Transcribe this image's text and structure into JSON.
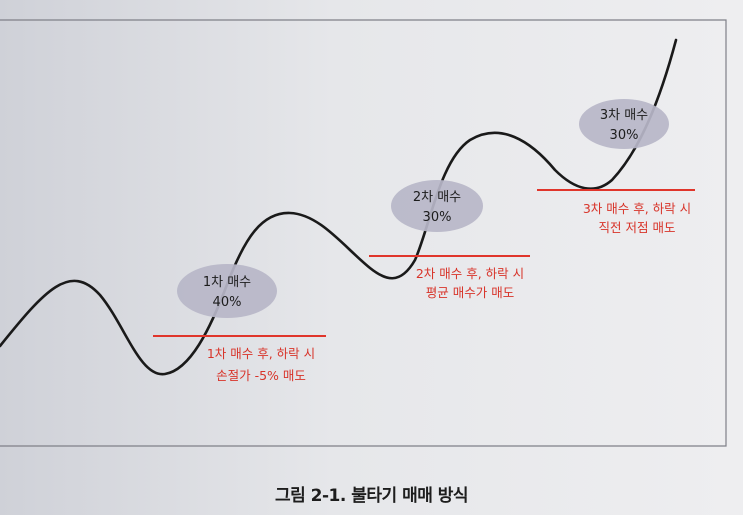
{
  "diagram": {
    "stages": [
      {
        "bubble_title": "1차 매수",
        "bubble_pct": "40%",
        "note_line1": "1차 매수 후, 하락 시",
        "note_line2": "손절가 -5% 매도"
      },
      {
        "bubble_title": "2차 매수",
        "bubble_pct": "30%",
        "note_line1": "2차 매수 후, 하락 시",
        "note_line2": "평균 매수가 매도"
      },
      {
        "bubble_title": "3차 매수",
        "bubble_pct": "30%",
        "note_line1": "3차 매수 후, 하락 시",
        "note_line2": "직전 저점 매도"
      }
    ],
    "colors": {
      "curve": "#1a1a1a",
      "threshold_line": "#e0352b",
      "bubble_fill": "#b7b6c8",
      "note_text": "#d8342a"
    }
  },
  "caption": "그림 2-1. 불타기 매매 방식"
}
